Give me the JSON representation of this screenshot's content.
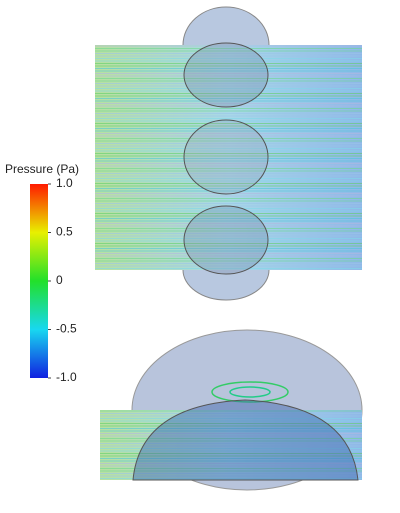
{
  "colorbar": {
    "title": "Pressure (Pa)",
    "range": [
      -1,
      1
    ],
    "ticks": [
      {
        "value": 1,
        "label": "1.0"
      },
      0.5,
      0,
      -0.5,
      {
        "value": -1,
        "label": "-1.0"
      }
    ]
  }
}
